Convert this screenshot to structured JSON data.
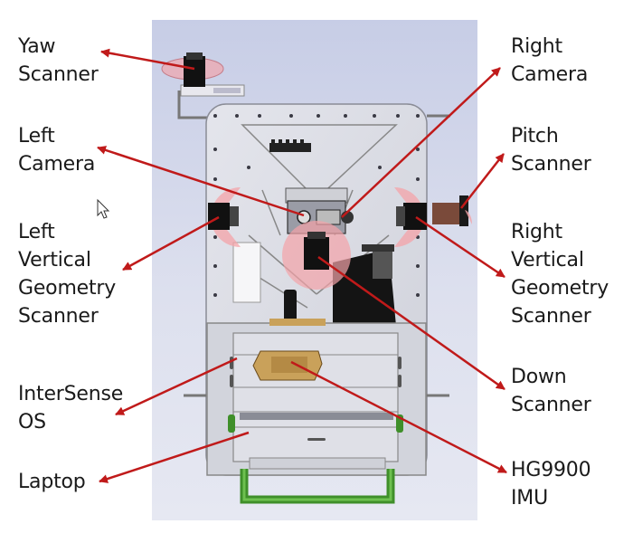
{
  "labels": {
    "yaw_scanner": "Yaw\nScanner",
    "left_camera": "Left\nCamera",
    "left_vertical_geometry_scanner": "Left\nVertical\nGeometry\nScanner",
    "intersense_os": "InterSense\nOS",
    "laptop": "Laptop",
    "right_camera": "Right\nCamera",
    "pitch_scanner": "Pitch\nScanner",
    "right_vertical_geometry_scanner": "Right\nVertical\nGeometry\nScanner",
    "down_scanner": "Down\nScanner",
    "hg9900_imu": "HG9900\nIMU"
  },
  "colors": {
    "arrow": "#c01a1a",
    "plate": "#dcdde4",
    "sensor_disc": "#f4a3a8",
    "sensor_body": "#111111",
    "imu": "#c9a15a",
    "handle": "#3f8f2a",
    "background_top": "#c7cde6",
    "background_bottom": "#e3e5f1"
  },
  "icons": [
    "cursor-arrow-icon"
  ]
}
